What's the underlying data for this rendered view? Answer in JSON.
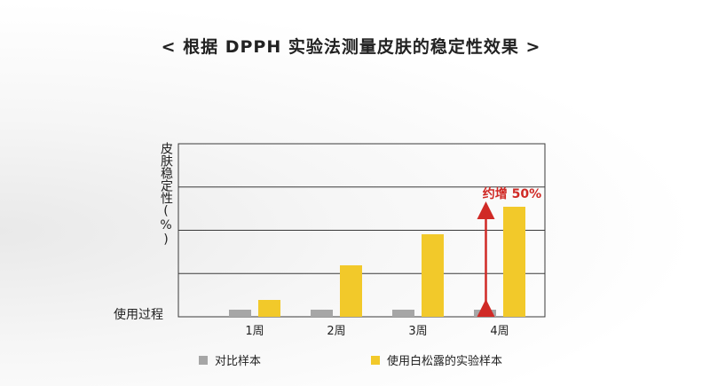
{
  "title": "< 根据 DPPH 实验法测量皮肤的稳定性效果 >",
  "colors": {
    "control": "#a6a6a6",
    "sample": "#f2c92a",
    "arrow": "#d02a26",
    "grid": "#3a3a3a"
  },
  "chart_data": {
    "type": "bar",
    "title": "< 根据 DPPH 实验法测量皮肤的稳定性效果 >",
    "xlabel": "",
    "ylabel": "皮肤稳定性(%)",
    "categories": [
      "1周",
      "2周",
      "3周",
      "4周"
    ],
    "series": [
      {
        "name": "对比样本",
        "values": [
          8,
          8,
          8,
          8
        ]
      },
      {
        "name": "使用白松露的实验样本",
        "values": [
          19,
          58,
          93,
          124
        ]
      }
    ],
    "ylim": [
      0,
      195
    ],
    "baseline_label": "使用过程",
    "grid": true,
    "legend": "bottom",
    "annotation": {
      "text": "约增 50%",
      "category": "4周"
    }
  }
}
